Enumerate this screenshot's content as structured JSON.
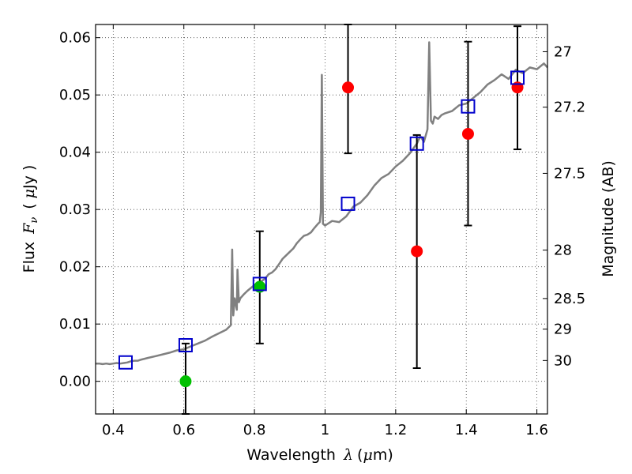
{
  "chart_data": {
    "type": "scatter",
    "xlabel": {
      "text": "Wavelength",
      "symbol": "λ",
      "unit_open": "(",
      "unit_mu": "μ",
      "unit_rest": "m)"
    },
    "ylabel": {
      "text": "Flux",
      "symbol": "F",
      "sub": "ν",
      "unit_open": "(",
      "unit_mu": "μ",
      "unit_rest": "Jy )"
    },
    "y2label": "Magnitude (AB)",
    "xlim": [
      0.35,
      1.63
    ],
    "ylim": [
      -0.0057,
      0.0623
    ],
    "x_ticks": [
      0.4,
      0.6,
      0.8,
      1.0,
      1.2,
      1.4,
      1.6
    ],
    "x_tick_labels": [
      "0.4",
      "0.6",
      "0.8",
      "1",
      "1.2",
      "1.4",
      "1.6"
    ],
    "y_ticks": [
      0.0,
      0.01,
      0.02,
      0.03,
      0.04,
      0.05,
      0.06
    ],
    "y_tick_labels": [
      "0.00",
      "0.01",
      "0.02",
      "0.03",
      "0.04",
      "0.05",
      "0.06"
    ],
    "mag_ticks": [
      {
        "mag": 27,
        "label": "27"
      },
      {
        "mag": 27.2,
        "label": "27.2"
      },
      {
        "mag": 27.5,
        "label": "27.5"
      },
      {
        "mag": 28,
        "label": "28"
      },
      {
        "mag": 28.5,
        "label": "28.5"
      },
      {
        "mag": 29,
        "label": "29"
      },
      {
        "mag": 30,
        "label": "30"
      }
    ],
    "grid": true,
    "colors": {
      "spectrum": "#808080",
      "model": "#0000cc",
      "detection": "#ff0000",
      "upper_limit": "#00c000",
      "errorbar": "#000000"
    },
    "spectrum": {
      "x": [
        0.35,
        0.36,
        0.37,
        0.38,
        0.39,
        0.4,
        0.41,
        0.42,
        0.43,
        0.44,
        0.45,
        0.46,
        0.47,
        0.48,
        0.5,
        0.52,
        0.54,
        0.56,
        0.58,
        0.6,
        0.62,
        0.64,
        0.66,
        0.68,
        0.7,
        0.72,
        0.733,
        0.737,
        0.74,
        0.744,
        0.75,
        0.752,
        0.756,
        0.76,
        0.77,
        0.78,
        0.79,
        0.8,
        0.81,
        0.82,
        0.83,
        0.84,
        0.85,
        0.86,
        0.87,
        0.88,
        0.89,
        0.9,
        0.91,
        0.92,
        0.93,
        0.94,
        0.95,
        0.96,
        0.97,
        0.98,
        0.985,
        0.988,
        0.991,
        0.994,
        1.0,
        1.02,
        1.04,
        1.06,
        1.08,
        1.1,
        1.12,
        1.14,
        1.16,
        1.18,
        1.2,
        1.22,
        1.24,
        1.26,
        1.27,
        1.28,
        1.29,
        1.295,
        1.3,
        1.305,
        1.31,
        1.32,
        1.33,
        1.34,
        1.36,
        1.38,
        1.4,
        1.42,
        1.44,
        1.46,
        1.48,
        1.5,
        1.52,
        1.54,
        1.56,
        1.58,
        1.6,
        1.62,
        1.63
      ],
      "y": [
        0.0031,
        0.0031,
        0.003,
        0.0031,
        0.003,
        0.0031,
        0.0032,
        0.0031,
        0.0032,
        0.0033,
        0.0035,
        0.0036,
        0.0036,
        0.0038,
        0.0041,
        0.0044,
        0.0047,
        0.005,
        0.0054,
        0.0056,
        0.0061,
        0.0066,
        0.0071,
        0.0078,
        0.0084,
        0.009,
        0.0098,
        0.023,
        0.0115,
        0.0145,
        0.0125,
        0.0195,
        0.0138,
        0.0145,
        0.0152,
        0.0158,
        0.0163,
        0.0168,
        0.0171,
        0.0175,
        0.0179,
        0.0187,
        0.019,
        0.0196,
        0.0205,
        0.0214,
        0.022,
        0.0226,
        0.0232,
        0.0241,
        0.0248,
        0.0254,
        0.0256,
        0.026,
        0.0268,
        0.0275,
        0.0278,
        0.0295,
        0.0535,
        0.0275,
        0.0272,
        0.028,
        0.0278,
        0.0288,
        0.0305,
        0.0312,
        0.0325,
        0.0342,
        0.0355,
        0.0362,
        0.0375,
        0.0385,
        0.0398,
        0.0415,
        0.0428,
        0.0418,
        0.044,
        0.0592,
        0.0455,
        0.045,
        0.0462,
        0.0458,
        0.0465,
        0.0468,
        0.0472,
        0.0482,
        0.0485,
        0.0495,
        0.0505,
        0.0518,
        0.0526,
        0.0536,
        0.0528,
        0.0544,
        0.0538,
        0.0548,
        0.0545,
        0.0555,
        0.0548
      ]
    },
    "model_points": {
      "x": [
        0.435,
        0.605,
        0.815,
        1.065,
        1.26,
        1.405,
        1.545
      ],
      "y": [
        0.0033,
        0.0063,
        0.017,
        0.031,
        0.0415,
        0.048,
        0.053
      ]
    },
    "detections": {
      "x": [
        1.065,
        1.26,
        1.405,
        1.545
      ],
      "y": [
        0.0513,
        0.0227,
        0.0432,
        0.0513
      ],
      "err_low": [
        0.0398,
        0.0023,
        0.0272,
        0.0405
      ],
      "err_high": [
        0.0623,
        0.043,
        0.0593,
        0.062
      ]
    },
    "upper_limits": {
      "x": [
        0.605,
        0.815
      ],
      "y": [
        0.0,
        0.0165
      ],
      "err_low": [
        -0.0057,
        0.0066
      ],
      "err_high": [
        0.0066,
        0.0262
      ]
    }
  }
}
